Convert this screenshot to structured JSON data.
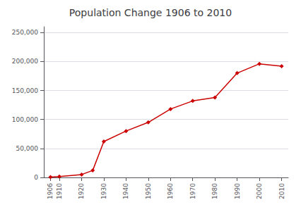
{
  "chart_data": {
    "type": "line",
    "title": "Population Change 1906 to 2010",
    "x": [
      1906,
      1910,
      1920,
      1925,
      1930,
      1940,
      1950,
      1960,
      1970,
      1980,
      1990,
      2000,
      2010
    ],
    "values": [
      500,
      1500,
      5000,
      12000,
      62000,
      80000,
      95000,
      118000,
      132000,
      138000,
      180000,
      196000,
      192000
    ],
    "color": "#cc0000",
    "marker": "diamond",
    "xlim": [
      1903,
      2013
    ],
    "xticks": [
      1906,
      1910,
      1920,
      1930,
      1940,
      1950,
      1960,
      1970,
      1980,
      1990,
      2000,
      2010
    ],
    "ylim": [
      0,
      260000
    ],
    "yticks": [
      0,
      {
        "value": 50000,
        "label": "50,000"
      },
      {
        "value": 100000,
        "label": "100,000"
      },
      {
        "value": 150000,
        "label": "150,000"
      },
      {
        "value": 200000,
        "label": "200,000"
      },
      {
        "value": 250000,
        "label": "250,000"
      }
    ],
    "grid": true
  }
}
